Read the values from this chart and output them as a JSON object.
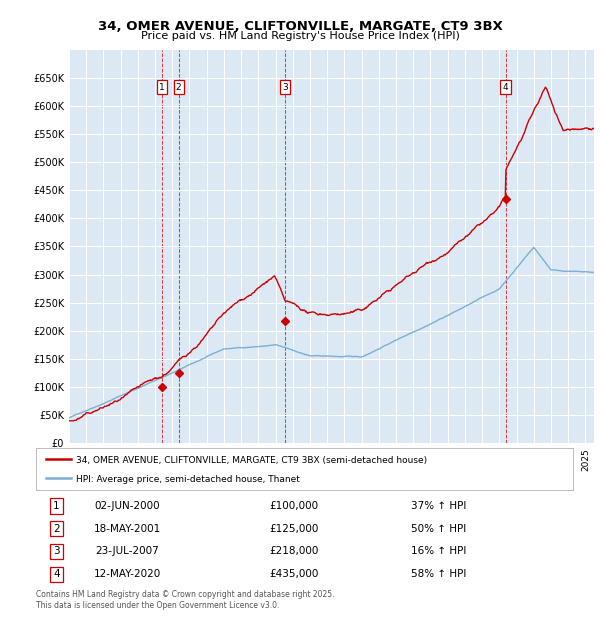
{
  "title": "34, OMER AVENUE, CLIFTONVILLE, MARGATE, CT9 3BX",
  "subtitle": "Price paid vs. HM Land Registry's House Price Index (HPI)",
  "background_color": "#dce9f5",
  "fig_bg_color": "#ffffff",
  "sale_color": "#cc0000",
  "hpi_color": "#7ab0d4",
  "ylim": [
    0,
    700000
  ],
  "yticks": [
    0,
    50000,
    100000,
    150000,
    200000,
    250000,
    300000,
    350000,
    400000,
    450000,
    500000,
    550000,
    600000,
    650000
  ],
  "ytick_labels": [
    "£0",
    "£50K",
    "£100K",
    "£150K",
    "£200K",
    "£250K",
    "£300K",
    "£350K",
    "£400K",
    "£450K",
    "£500K",
    "£550K",
    "£600K",
    "£650K"
  ],
  "sales": [
    {
      "num": 1,
      "date_year": 2000.42,
      "price": 100000,
      "label": "1"
    },
    {
      "num": 2,
      "date_year": 2001.37,
      "price": 125000,
      "label": "2"
    },
    {
      "num": 3,
      "date_year": 2007.55,
      "price": 218000,
      "label": "3"
    },
    {
      "num": 4,
      "date_year": 2020.36,
      "price": 435000,
      "label": "4"
    }
  ],
  "vline_color": "#cc0000",
  "table_rows": [
    {
      "num": "1",
      "date": "02-JUN-2000",
      "price": "£100,000",
      "hpi_diff": "37% ↑ HPI"
    },
    {
      "num": "2",
      "date": "18-MAY-2001",
      "price": "£125,000",
      "hpi_diff": "50% ↑ HPI"
    },
    {
      "num": "3",
      "date": "23-JUL-2007",
      "price": "£218,000",
      "hpi_diff": "16% ↑ HPI"
    },
    {
      "num": "4",
      "date": "12-MAY-2020",
      "price": "£435,000",
      "hpi_diff": "58% ↑ HPI"
    }
  ],
  "legend1": "34, OMER AVENUE, CLIFTONVILLE, MARGATE, CT9 3BX (semi-detached house)",
  "legend2": "HPI: Average price, semi-detached house, Thanet",
  "footnote": "Contains HM Land Registry data © Crown copyright and database right 2025.\nThis data is licensed under the Open Government Licence v3.0.",
  "xlim_start": 1995.0,
  "xlim_end": 2025.5
}
